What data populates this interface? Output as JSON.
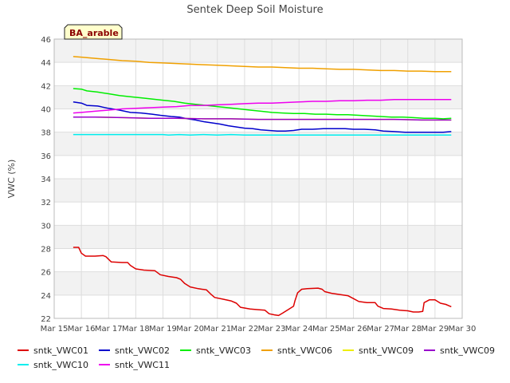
{
  "chart_data": {
    "type": "line",
    "title": "Sentek Deep Soil Moisture",
    "badge": "BA_arable",
    "xlabel": "",
    "ylabel": "VWC (%)",
    "xlim": [
      15,
      30
    ],
    "ylim": [
      22,
      46
    ],
    "x_ticks": [
      15,
      16,
      17,
      18,
      19,
      20,
      21,
      22,
      23,
      24,
      25,
      26,
      27,
      28,
      29,
      30
    ],
    "x_tick_labels": [
      "Mar 15",
      "Mar 16",
      "Mar 17",
      "Mar 18",
      "Mar 19",
      "Mar 20",
      "Mar 21",
      "Mar 22",
      "Mar 23",
      "Mar 24",
      "Mar 25",
      "Mar 26",
      "Mar 27",
      "Mar 28",
      "Mar 29",
      "Mar 30"
    ],
    "y_ticks": [
      22,
      24,
      26,
      28,
      30,
      32,
      34,
      36,
      38,
      40,
      42,
      44,
      46
    ],
    "y_tick_labels": [
      "22",
      "24",
      "26",
      "28",
      "30",
      "32",
      "34",
      "36",
      "38",
      "40",
      "42",
      "44",
      "46"
    ],
    "grid": true,
    "band_color": "#f2f2f2",
    "legend_position": "bottom",
    "series": [
      {
        "name": "sntk_VWC01",
        "color": "#dd0000",
        "points": [
          [
            15.7,
            28.1
          ],
          [
            15.9,
            28.1
          ],
          [
            16.0,
            27.6
          ],
          [
            16.15,
            27.35
          ],
          [
            16.5,
            27.35
          ],
          [
            16.8,
            27.4
          ],
          [
            16.9,
            27.3
          ],
          [
            17.1,
            26.85
          ],
          [
            17.5,
            26.8
          ],
          [
            17.7,
            26.8
          ],
          [
            17.8,
            26.55
          ],
          [
            18.0,
            26.25
          ],
          [
            18.3,
            26.15
          ],
          [
            18.7,
            26.1
          ],
          [
            18.9,
            25.75
          ],
          [
            19.2,
            25.6
          ],
          [
            19.5,
            25.5
          ],
          [
            19.65,
            25.35
          ],
          [
            19.8,
            25.0
          ],
          [
            20.0,
            24.7
          ],
          [
            20.3,
            24.55
          ],
          [
            20.6,
            24.45
          ],
          [
            20.75,
            24.1
          ],
          [
            20.9,
            23.8
          ],
          [
            21.2,
            23.65
          ],
          [
            21.5,
            23.5
          ],
          [
            21.7,
            23.3
          ],
          [
            21.85,
            22.95
          ],
          [
            22.2,
            22.8
          ],
          [
            22.5,
            22.75
          ],
          [
            22.75,
            22.7
          ],
          [
            22.9,
            22.4
          ],
          [
            23.1,
            22.3
          ],
          [
            23.25,
            22.25
          ],
          [
            23.4,
            22.45
          ],
          [
            23.6,
            22.75
          ],
          [
            23.8,
            23.05
          ],
          [
            23.85,
            23.5
          ],
          [
            23.95,
            24.2
          ],
          [
            24.1,
            24.5
          ],
          [
            24.3,
            24.55
          ],
          [
            24.7,
            24.6
          ],
          [
            24.85,
            24.5
          ],
          [
            24.95,
            24.3
          ],
          [
            25.2,
            24.15
          ],
          [
            25.5,
            24.05
          ],
          [
            25.8,
            23.95
          ],
          [
            26.0,
            23.7
          ],
          [
            26.2,
            23.45
          ],
          [
            26.5,
            23.35
          ],
          [
            26.8,
            23.35
          ],
          [
            26.9,
            23.05
          ],
          [
            27.1,
            22.85
          ],
          [
            27.4,
            22.8
          ],
          [
            27.7,
            22.7
          ],
          [
            28.0,
            22.65
          ],
          [
            28.2,
            22.55
          ],
          [
            28.4,
            22.55
          ],
          [
            28.55,
            22.6
          ],
          [
            28.6,
            23.35
          ],
          [
            28.8,
            23.6
          ],
          [
            29.0,
            23.6
          ],
          [
            29.2,
            23.3
          ],
          [
            29.4,
            23.2
          ],
          [
            29.6,
            23.0
          ]
        ]
      },
      {
        "name": "sntk_VWC02",
        "color": "#0000cc",
        "points": [
          [
            15.7,
            40.6
          ],
          [
            16.0,
            40.5
          ],
          [
            16.2,
            40.3
          ],
          [
            16.6,
            40.25
          ],
          [
            17.0,
            40.05
          ],
          [
            17.4,
            39.9
          ],
          [
            17.8,
            39.7
          ],
          [
            18.2,
            39.65
          ],
          [
            18.6,
            39.55
          ],
          [
            18.9,
            39.45
          ],
          [
            19.3,
            39.35
          ],
          [
            19.6,
            39.3
          ],
          [
            19.9,
            39.15
          ],
          [
            20.2,
            39.05
          ],
          [
            20.5,
            38.9
          ],
          [
            20.8,
            38.8
          ],
          [
            21.1,
            38.7
          ],
          [
            21.4,
            38.55
          ],
          [
            21.7,
            38.45
          ],
          [
            22.0,
            38.35
          ],
          [
            22.3,
            38.3
          ],
          [
            22.6,
            38.2
          ],
          [
            22.9,
            38.15
          ],
          [
            23.2,
            38.1
          ],
          [
            23.5,
            38.1
          ],
          [
            23.8,
            38.15
          ],
          [
            24.1,
            38.25
          ],
          [
            24.5,
            38.25
          ],
          [
            24.9,
            38.3
          ],
          [
            25.3,
            38.3
          ],
          [
            25.7,
            38.3
          ],
          [
            26.0,
            38.25
          ],
          [
            26.4,
            38.25
          ],
          [
            26.8,
            38.2
          ],
          [
            27.1,
            38.1
          ],
          [
            27.5,
            38.05
          ],
          [
            27.9,
            38.0
          ],
          [
            28.3,
            38.0
          ],
          [
            28.7,
            38.0
          ],
          [
            29.0,
            38.0
          ],
          [
            29.3,
            38.0
          ],
          [
            29.6,
            38.05
          ]
        ]
      },
      {
        "name": "sntk_VWC03",
        "color": "#00ee00",
        "points": [
          [
            15.7,
            41.75
          ],
          [
            16.0,
            41.7
          ],
          [
            16.2,
            41.55
          ],
          [
            16.6,
            41.45
          ],
          [
            17.0,
            41.3
          ],
          [
            17.4,
            41.15
          ],
          [
            17.8,
            41.05
          ],
          [
            18.2,
            40.95
          ],
          [
            18.6,
            40.85
          ],
          [
            19.0,
            40.75
          ],
          [
            19.4,
            40.65
          ],
          [
            19.8,
            40.5
          ],
          [
            20.2,
            40.4
          ],
          [
            20.6,
            40.3
          ],
          [
            21.0,
            40.2
          ],
          [
            21.4,
            40.1
          ],
          [
            21.8,
            40.0
          ],
          [
            22.2,
            39.9
          ],
          [
            22.6,
            39.8
          ],
          [
            23.0,
            39.7
          ],
          [
            23.4,
            39.65
          ],
          [
            23.8,
            39.6
          ],
          [
            24.2,
            39.6
          ],
          [
            24.6,
            39.55
          ],
          [
            25.0,
            39.55
          ],
          [
            25.4,
            39.5
          ],
          [
            25.8,
            39.5
          ],
          [
            26.2,
            39.45
          ],
          [
            26.6,
            39.4
          ],
          [
            27.0,
            39.35
          ],
          [
            27.4,
            39.3
          ],
          [
            27.8,
            39.3
          ],
          [
            28.2,
            39.25
          ],
          [
            28.6,
            39.2
          ],
          [
            29.0,
            39.2
          ],
          [
            29.3,
            39.15
          ],
          [
            29.6,
            39.2
          ]
        ]
      },
      {
        "name": "sntk_VWC06",
        "color": "#f0a000",
        "points": [
          [
            15.7,
            44.5
          ],
          [
            16.0,
            44.45
          ],
          [
            16.5,
            44.35
          ],
          [
            17.0,
            44.25
          ],
          [
            17.5,
            44.15
          ],
          [
            18.0,
            44.1
          ],
          [
            18.5,
            44.0
          ],
          [
            19.0,
            43.95
          ],
          [
            19.5,
            43.9
          ],
          [
            20.0,
            43.85
          ],
          [
            20.5,
            43.8
          ],
          [
            21.0,
            43.75
          ],
          [
            21.5,
            43.7
          ],
          [
            22.0,
            43.65
          ],
          [
            22.5,
            43.6
          ],
          [
            23.0,
            43.6
          ],
          [
            23.5,
            43.55
          ],
          [
            24.0,
            43.5
          ],
          [
            24.5,
            43.5
          ],
          [
            25.0,
            43.45
          ],
          [
            25.5,
            43.4
          ],
          [
            26.0,
            43.4
          ],
          [
            26.5,
            43.35
          ],
          [
            27.0,
            43.3
          ],
          [
            27.5,
            43.3
          ],
          [
            28.0,
            43.25
          ],
          [
            28.5,
            43.25
          ],
          [
            29.0,
            43.2
          ],
          [
            29.6,
            43.2
          ]
        ]
      },
      {
        "name": "sntk_VWC09",
        "color": "#eeee00",
        "points": [
          [
            15.7,
            39.3
          ],
          [
            16.5,
            39.3
          ],
          [
            17.5,
            39.25
          ],
          [
            18.5,
            39.2
          ],
          [
            19.5,
            39.2
          ],
          [
            20.5,
            39.15
          ],
          [
            21.5,
            39.15
          ],
          [
            22.5,
            39.1
          ],
          [
            23.5,
            39.1
          ],
          [
            24.5,
            39.1
          ],
          [
            25.5,
            39.1
          ],
          [
            26.5,
            39.1
          ],
          [
            27.5,
            39.1
          ],
          [
            28.5,
            39.05
          ],
          [
            29.6,
            39.05
          ]
        ]
      },
      {
        "name": "sntk_VWC09",
        "color": "#9900cc",
        "points": [
          [
            15.7,
            39.3
          ],
          [
            16.5,
            39.3
          ],
          [
            17.5,
            39.25
          ],
          [
            18.5,
            39.2
          ],
          [
            19.5,
            39.2
          ],
          [
            20.5,
            39.15
          ],
          [
            21.5,
            39.15
          ],
          [
            22.5,
            39.1
          ],
          [
            23.5,
            39.1
          ],
          [
            24.5,
            39.1
          ],
          [
            25.5,
            39.1
          ],
          [
            26.5,
            39.1
          ],
          [
            27.5,
            39.1
          ],
          [
            28.5,
            39.05
          ],
          [
            29.6,
            39.05
          ]
        ]
      },
      {
        "name": "sntk_VWC10",
        "color": "#00eeee",
        "points": [
          [
            15.7,
            37.8
          ],
          [
            16.5,
            37.8
          ],
          [
            17.5,
            37.8
          ],
          [
            18.5,
            37.8
          ],
          [
            19.0,
            37.8
          ],
          [
            19.2,
            37.75
          ],
          [
            19.6,
            37.8
          ],
          [
            20.0,
            37.75
          ],
          [
            20.5,
            37.8
          ],
          [
            21.0,
            37.75
          ],
          [
            21.5,
            37.8
          ],
          [
            22.0,
            37.75
          ],
          [
            23.0,
            37.75
          ],
          [
            24.0,
            37.75
          ],
          [
            25.0,
            37.75
          ],
          [
            26.0,
            37.75
          ],
          [
            27.0,
            37.75
          ],
          [
            28.0,
            37.75
          ],
          [
            29.0,
            37.75
          ],
          [
            29.6,
            37.75
          ]
        ]
      },
      {
        "name": "sntk_VWC11",
        "color": "#ee00ee",
        "points": [
          [
            15.7,
            39.65
          ],
          [
            16.0,
            39.7
          ],
          [
            16.5,
            39.8
          ],
          [
            17.0,
            39.9
          ],
          [
            17.5,
            40.0
          ],
          [
            18.0,
            40.05
          ],
          [
            18.5,
            40.1
          ],
          [
            19.0,
            40.15
          ],
          [
            19.5,
            40.2
          ],
          [
            20.0,
            40.3
          ],
          [
            20.5,
            40.3
          ],
          [
            21.0,
            40.35
          ],
          [
            21.5,
            40.4
          ],
          [
            22.0,
            40.45
          ],
          [
            22.5,
            40.5
          ],
          [
            23.0,
            40.5
          ],
          [
            23.5,
            40.55
          ],
          [
            24.0,
            40.6
          ],
          [
            24.5,
            40.65
          ],
          [
            25.0,
            40.65
          ],
          [
            25.5,
            40.7
          ],
          [
            26.0,
            40.7
          ],
          [
            26.5,
            40.75
          ],
          [
            27.0,
            40.75
          ],
          [
            27.5,
            40.8
          ],
          [
            28.0,
            40.8
          ],
          [
            28.5,
            40.8
          ],
          [
            29.0,
            40.8
          ],
          [
            29.6,
            40.8
          ]
        ]
      }
    ]
  }
}
